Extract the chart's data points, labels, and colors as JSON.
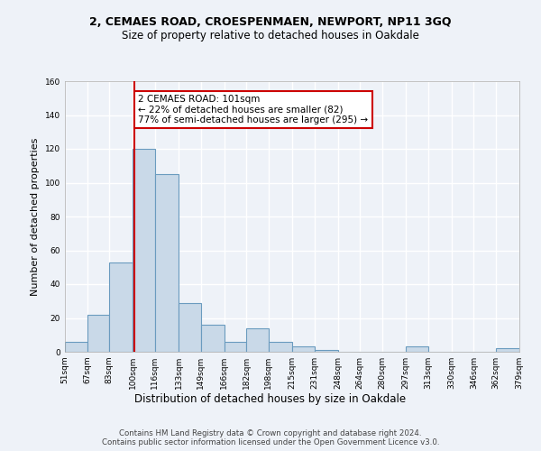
{
  "title1": "2, CEMAES ROAD, CROESPENMAEN, NEWPORT, NP11 3GQ",
  "title2": "Size of property relative to detached houses in Oakdale",
  "xlabel": "Distribution of detached houses by size in Oakdale",
  "ylabel": "Number of detached properties",
  "bar_edges": [
    51,
    67,
    83,
    100,
    116,
    133,
    149,
    166,
    182,
    198,
    215,
    231,
    248,
    264,
    280,
    297,
    313,
    330,
    346,
    362,
    379
  ],
  "bar_heights": [
    6,
    22,
    53,
    120,
    105,
    29,
    16,
    6,
    14,
    6,
    3,
    1,
    0,
    0,
    0,
    3,
    0,
    0,
    0,
    2
  ],
  "bar_color": "#c9d9e8",
  "bar_edge_color": "#6a9bbf",
  "vline_x": 101,
  "vline_color": "#cc0000",
  "annotation_text": "2 CEMAES ROAD: 101sqm\n← 22% of detached houses are smaller (82)\n77% of semi-detached houses are larger (295) →",
  "annotation_box_color": "#ffffff",
  "annotation_box_edge": "#cc0000",
  "ylim": [
    0,
    160
  ],
  "yticks": [
    0,
    20,
    40,
    60,
    80,
    100,
    120,
    140,
    160
  ],
  "tick_labels": [
    "51sqm",
    "67sqm",
    "83sqm",
    "100sqm",
    "116sqm",
    "133sqm",
    "149sqm",
    "166sqm",
    "182sqm",
    "198sqm",
    "215sqm",
    "231sqm",
    "248sqm",
    "264sqm",
    "280sqm",
    "297sqm",
    "313sqm",
    "330sqm",
    "346sqm",
    "362sqm",
    "379sqm"
  ],
  "footer": "Contains HM Land Registry data © Crown copyright and database right 2024.\nContains public sector information licensed under the Open Government Licence v3.0.",
  "bg_color": "#eef2f8",
  "grid_color": "#ffffff",
  "title1_fontsize": 9,
  "title2_fontsize": 8.5,
  "ylabel_fontsize": 8,
  "xlabel_fontsize": 8.5,
  "annotation_fontsize": 7.5,
  "tick_fontsize": 6.5,
  "footer_fontsize": 6.2
}
